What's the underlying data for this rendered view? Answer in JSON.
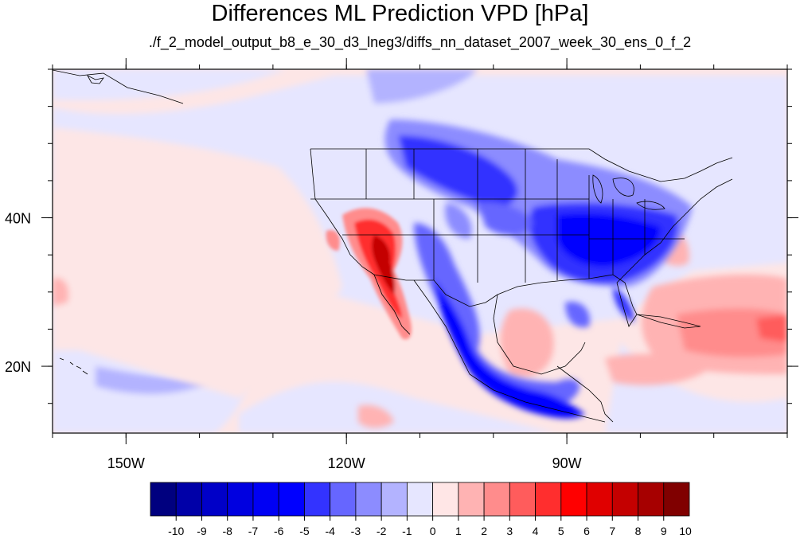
{
  "title": "Differences ML Prediction VPD [hPa]",
  "subtitle": "./f_2_model_output_b8_e_30_d3_lneg3/diffs_nn_dataset_2007_week_30_ens_0_f_2",
  "map": {
    "projection": "cylindrical equidistant",
    "lon_range": [
      -160,
      -60
    ],
    "lat_range": [
      11,
      60
    ],
    "lon_ticks": [
      {
        "value": -150,
        "label": "150W"
      },
      {
        "value": -120,
        "label": "120W"
      },
      {
        "value": -90,
        "label": "90W"
      }
    ],
    "lat_ticks": [
      {
        "value": 40,
        "label": "40N"
      },
      {
        "value": 20,
        "label": "20N"
      }
    ],
    "background_field_color": "#fde6e6",
    "boundaries": "coastlines, country and US state borders"
  },
  "colorbar": {
    "labels": [
      "-10",
      "-9",
      "-8",
      "-7",
      "-6",
      "-5",
      "-4",
      "-3",
      "-2",
      "-1",
      "0",
      "1",
      "2",
      "3",
      "4",
      "5",
      "6",
      "7",
      "8",
      "9",
      "10"
    ],
    "colors": [
      "#00007f",
      "#0000a8",
      "#0000c8",
      "#0000e0",
      "#0000f4",
      "#0000ff",
      "#3333ff",
      "#6666ff",
      "#8c8cff",
      "#b3b3ff",
      "#e6e6ff",
      "#ffe6e6",
      "#ffb3b3",
      "#ff8c8c",
      "#ff5c5c",
      "#ff2e2e",
      "#ff0000",
      "#e00000",
      "#c40000",
      "#a60000",
      "#800000"
    ]
  }
}
